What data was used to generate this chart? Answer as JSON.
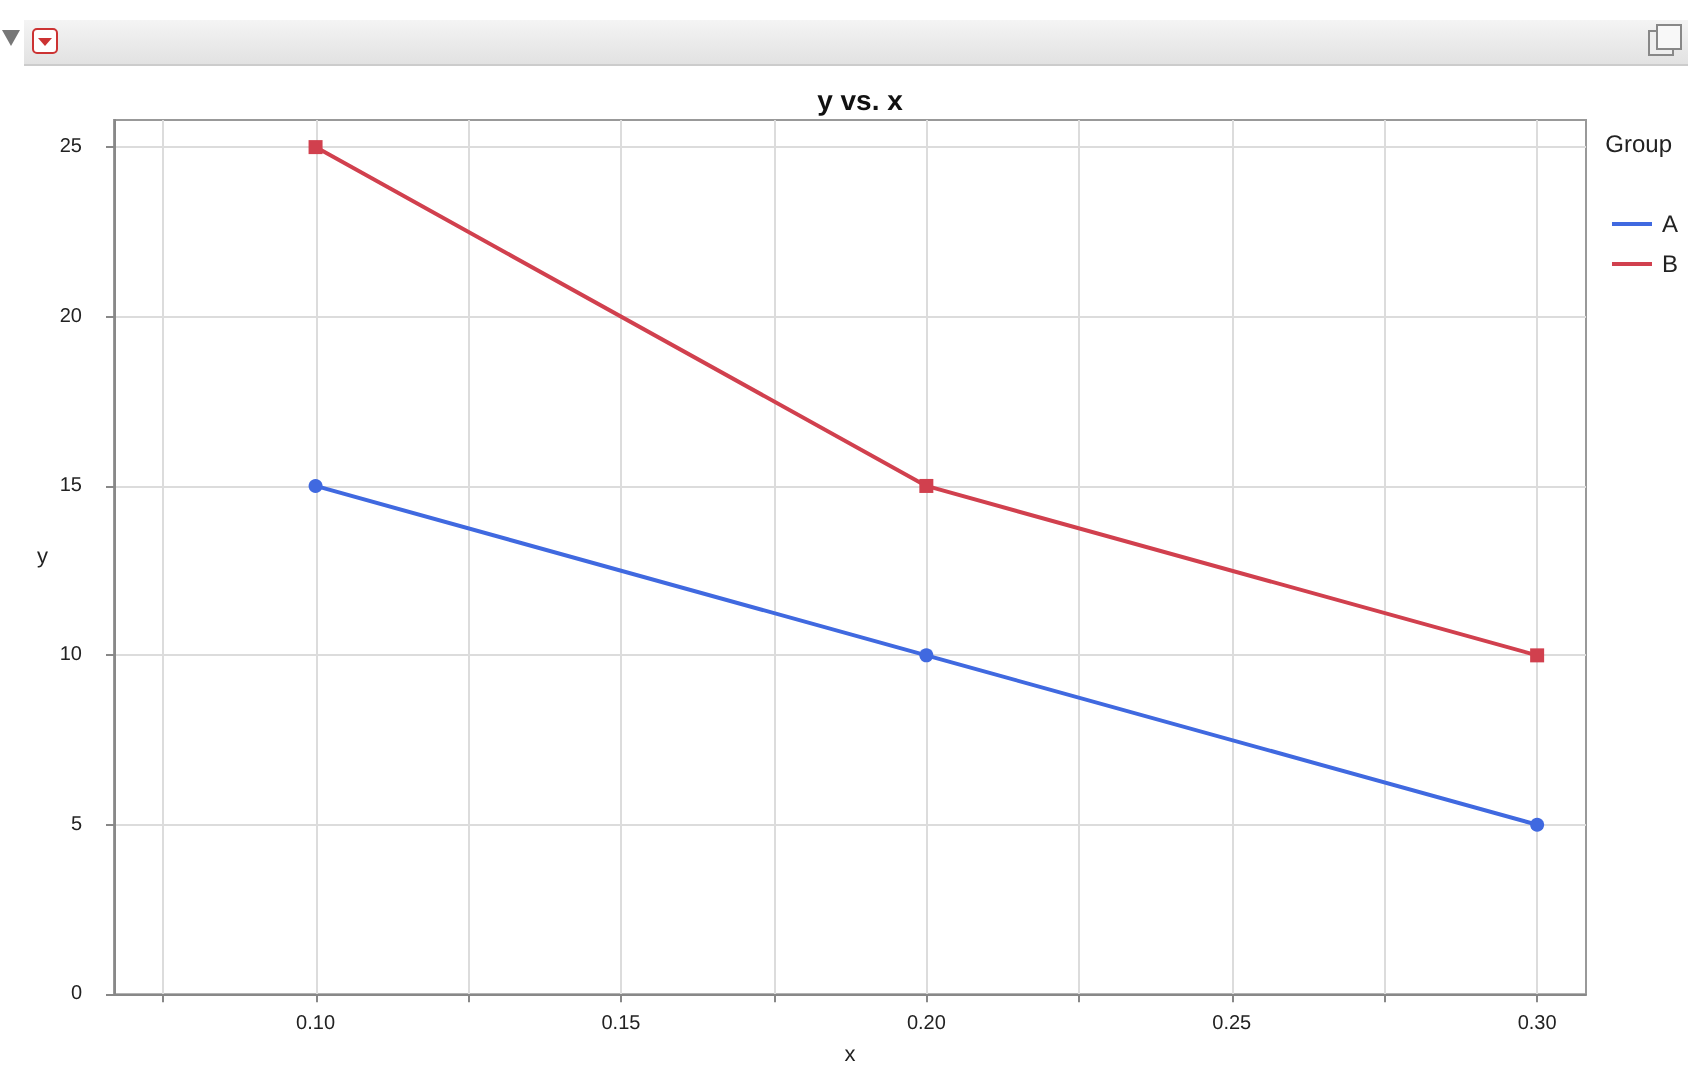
{
  "chart_data": {
    "type": "line",
    "title": "y vs. x",
    "xlabel": "x",
    "ylabel": "y",
    "legend_title": "Group",
    "legend": "top right",
    "grid": true,
    "line_style": "solid",
    "series": [
      {
        "name": "A",
        "color": "#4069e0",
        "marker": "circle",
        "x": [
          0.1,
          0.2,
          0.3
        ],
        "values": [
          15,
          10,
          5
        ]
      },
      {
        "name": "B",
        "color": "#d1404e",
        "marker": "square",
        "x": [
          0.1,
          0.2,
          0.3
        ],
        "values": [
          25,
          15,
          10
        ]
      }
    ],
    "xlim": [
      0.067,
      0.308
    ],
    "ylim": [
      0,
      25.8
    ],
    "xticks": [
      {
        "value": 0.075,
        "label": null
      },
      {
        "value": 0.1,
        "label": "0.10"
      },
      {
        "value": 0.125,
        "label": null
      },
      {
        "value": 0.15,
        "label": "0.15"
      },
      {
        "value": 0.175,
        "label": null
      },
      {
        "value": 0.2,
        "label": "0.20"
      },
      {
        "value": 0.225,
        "label": null
      },
      {
        "value": 0.25,
        "label": "0.25"
      },
      {
        "value": 0.275,
        "label": null
      },
      {
        "value": 0.3,
        "label": "0.30"
      }
    ],
    "yticks": [
      0,
      5,
      10,
      15,
      20,
      25
    ]
  }
}
